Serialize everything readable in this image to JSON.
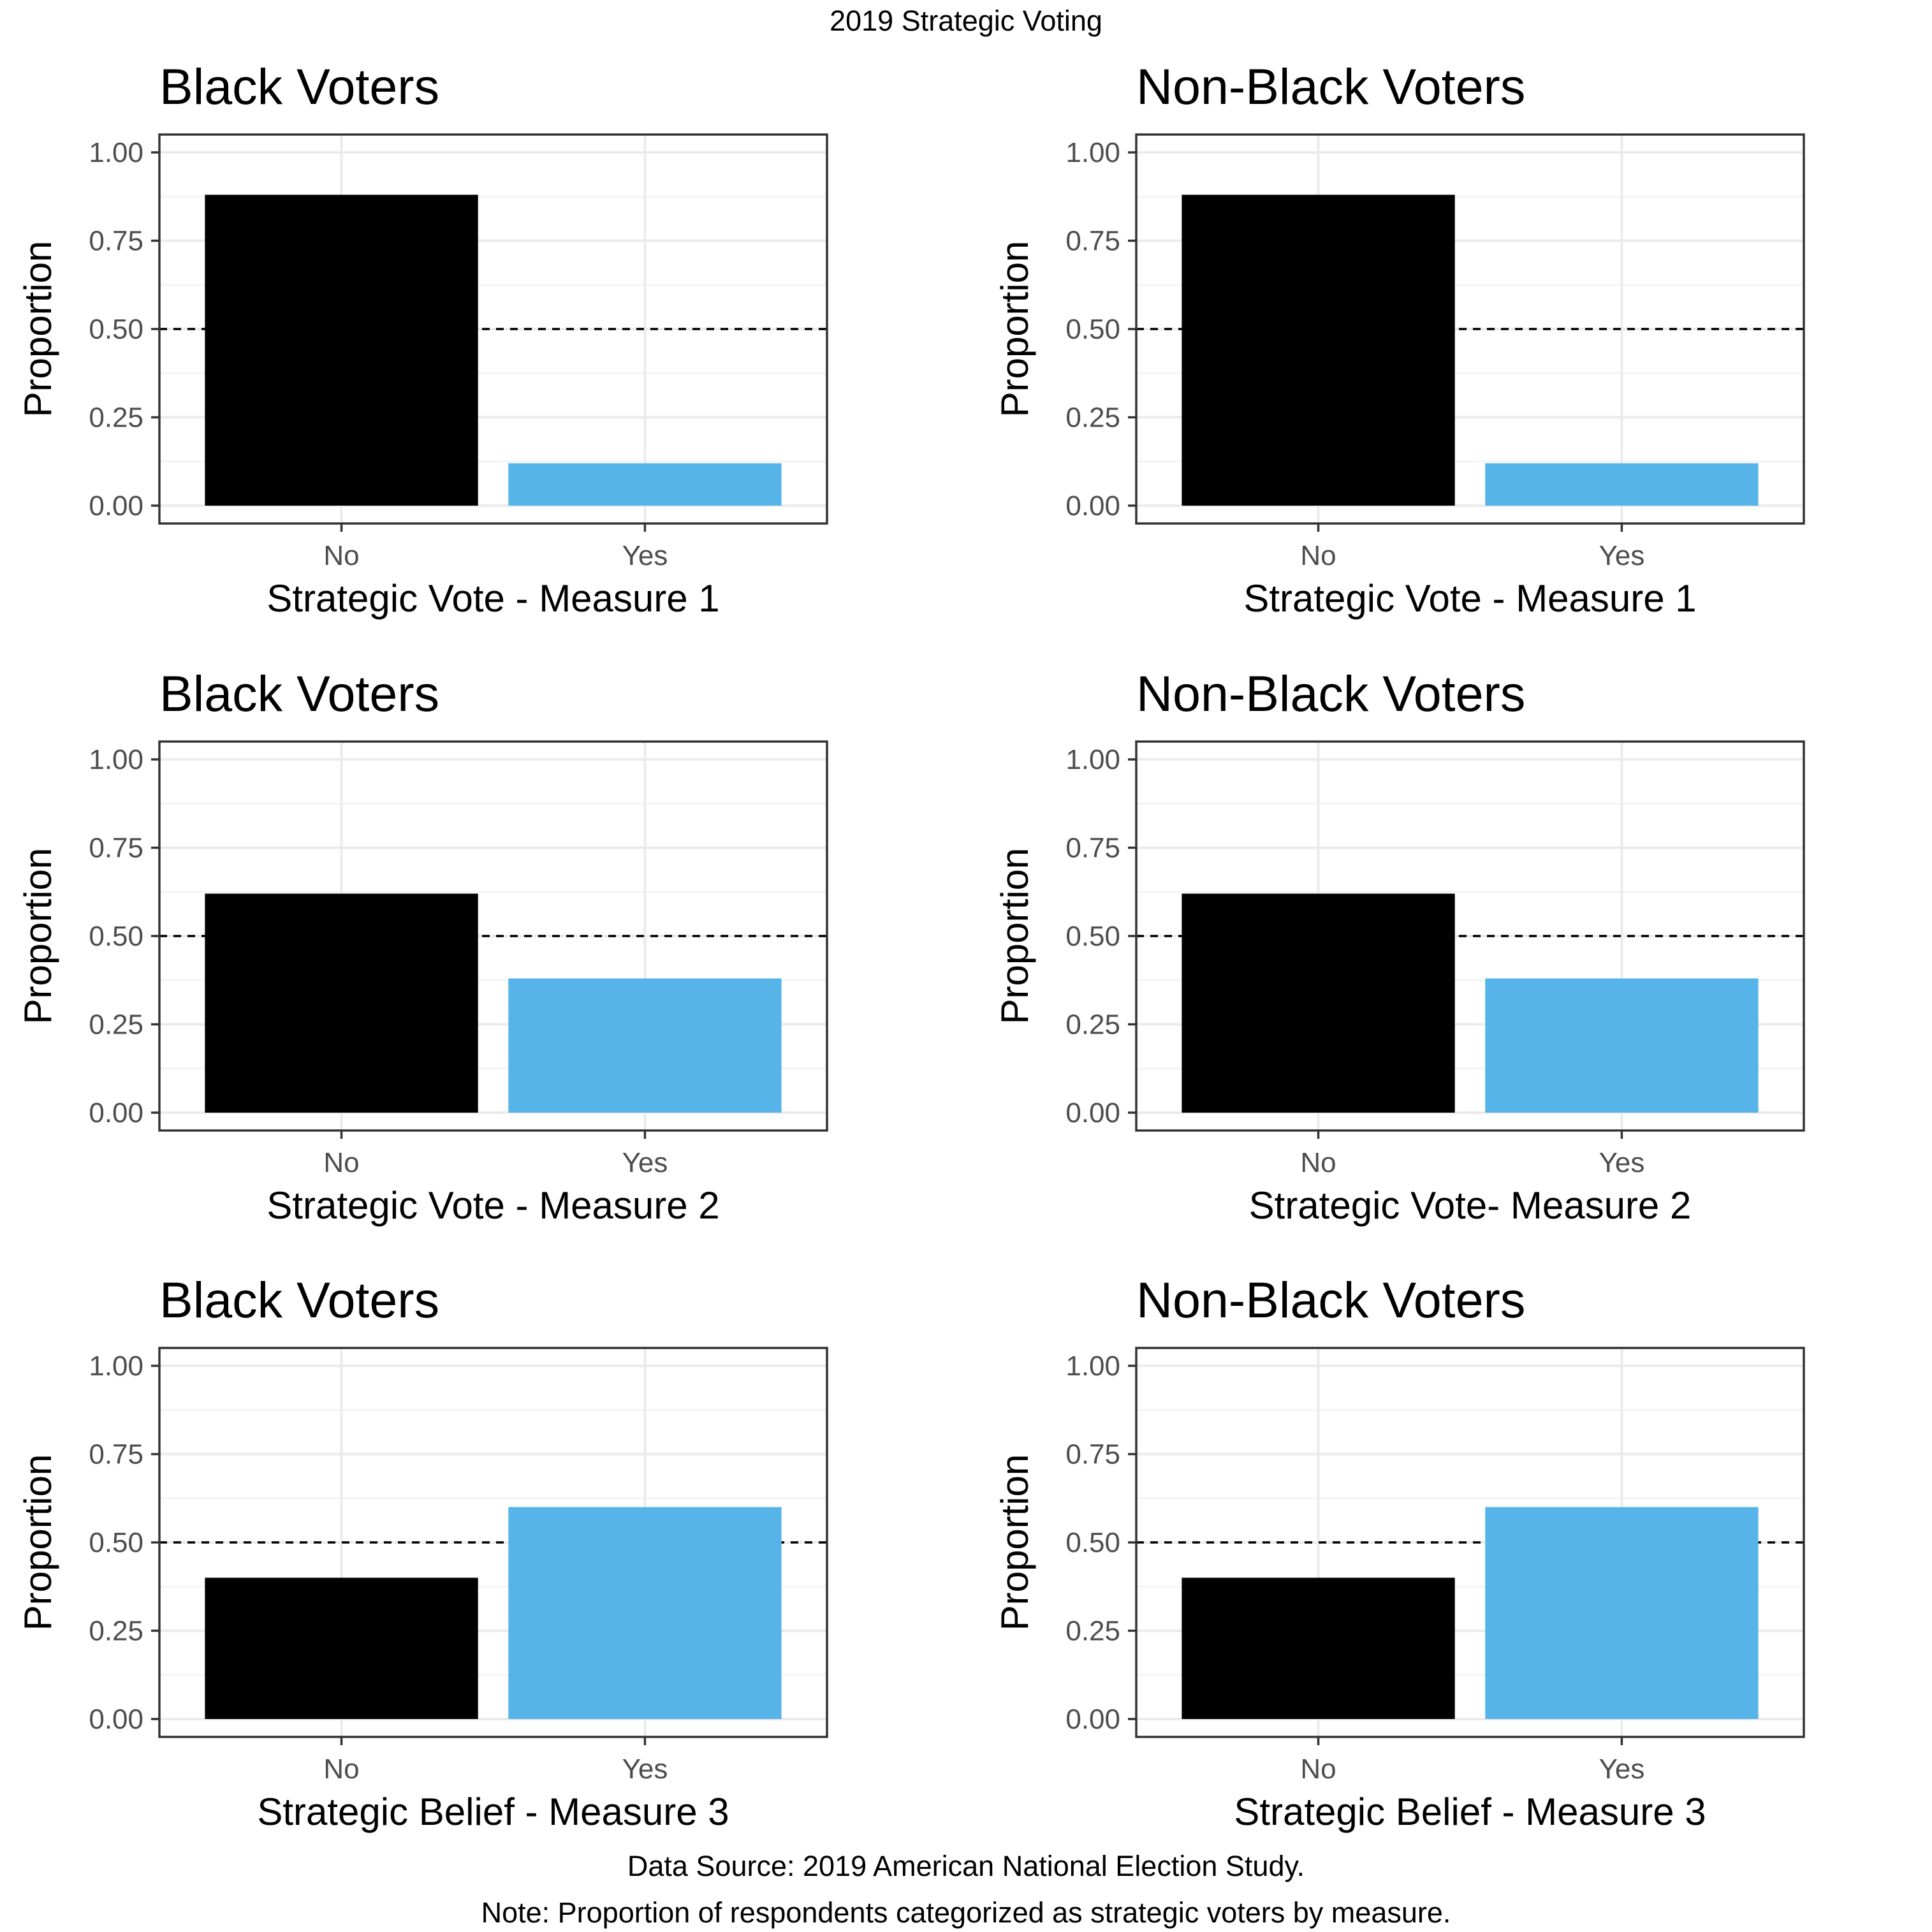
{
  "figure": {
    "title": "2019 Strategic Voting",
    "source": "Data Source: 2019 American National Election Study.",
    "note": "Note: Proportion of respondents categorized as strategic voters by measure."
  },
  "colors": {
    "no_bar": "#000000",
    "yes_bar": "#56B4E9",
    "reference_line": "#000000",
    "grid_major": "#EBEBEB",
    "grid_minor": "#F4F4F4",
    "panel_border": "#333333"
  },
  "chart_data": [
    {
      "type": "bar",
      "title": "Black Voters",
      "xlabel": "Strategic Vote - Measure 1",
      "ylabel": "Proportion",
      "categories": [
        "No",
        "Yes"
      ],
      "values": [
        0.88,
        0.12
      ],
      "ylim": [
        0,
        1
      ],
      "yticks": [
        "0.00",
        "0.25",
        "0.50",
        "0.75",
        "1.00"
      ],
      "reference_line": 0.5,
      "grid": true,
      "legend": "none"
    },
    {
      "type": "bar",
      "title": "Non-Black Voters",
      "xlabel": "Strategic Vote - Measure 1",
      "ylabel": "Proportion",
      "categories": [
        "No",
        "Yes"
      ],
      "values": [
        0.88,
        0.12
      ],
      "ylim": [
        0,
        1
      ],
      "yticks": [
        "0.00",
        "0.25",
        "0.50",
        "0.75",
        "1.00"
      ],
      "reference_line": 0.5,
      "grid": true,
      "legend": "none"
    },
    {
      "type": "bar",
      "title": "Black Voters",
      "xlabel": "Strategic Vote - Measure 2",
      "ylabel": "Proportion",
      "categories": [
        "No",
        "Yes"
      ],
      "values": [
        0.62,
        0.38
      ],
      "ylim": [
        0,
        1
      ],
      "yticks": [
        "0.00",
        "0.25",
        "0.50",
        "0.75",
        "1.00"
      ],
      "reference_line": 0.5,
      "grid": true,
      "legend": "none"
    },
    {
      "type": "bar",
      "title": "Non-Black Voters",
      "xlabel": "Strategic Vote- Measure 2",
      "ylabel": "Proportion",
      "categories": [
        "No",
        "Yes"
      ],
      "values": [
        0.62,
        0.38
      ],
      "ylim": [
        0,
        1
      ],
      "yticks": [
        "0.00",
        "0.25",
        "0.50",
        "0.75",
        "1.00"
      ],
      "reference_line": 0.5,
      "grid": true,
      "legend": "none"
    },
    {
      "type": "bar",
      "title": "Black Voters",
      "xlabel": "Strategic Belief - Measure 3",
      "ylabel": "Proportion",
      "categories": [
        "No",
        "Yes"
      ],
      "values": [
        0.4,
        0.6
      ],
      "ylim": [
        0,
        1
      ],
      "yticks": [
        "0.00",
        "0.25",
        "0.50",
        "0.75",
        "1.00"
      ],
      "reference_line": 0.5,
      "grid": true,
      "legend": "none"
    },
    {
      "type": "bar",
      "title": "Non-Black Voters",
      "xlabel": "Strategic Belief - Measure 3",
      "ylabel": "Proportion",
      "categories": [
        "No",
        "Yes"
      ],
      "values": [
        0.4,
        0.6
      ],
      "ylim": [
        0,
        1
      ],
      "yticks": [
        "0.00",
        "0.25",
        "0.50",
        "0.75",
        "1.00"
      ],
      "reference_line": 0.5,
      "grid": true,
      "legend": "none"
    }
  ]
}
